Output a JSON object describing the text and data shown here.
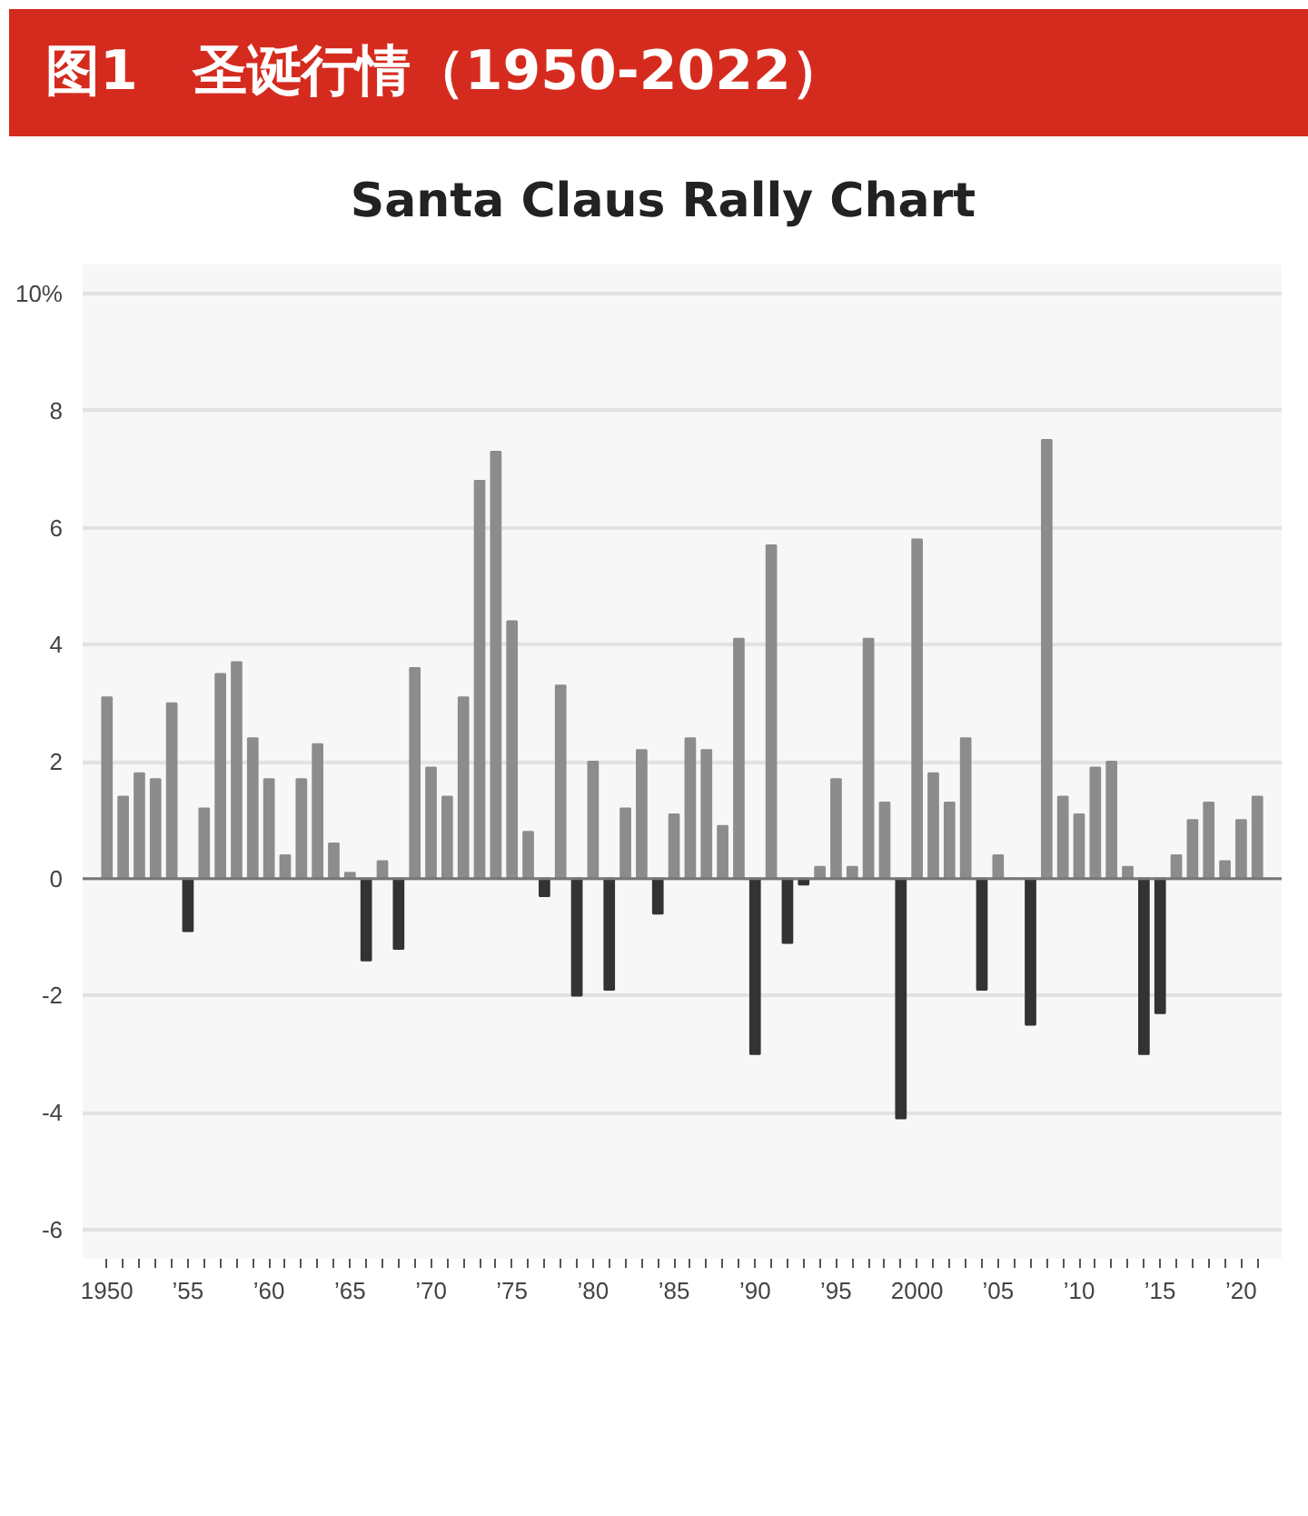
{
  "chart_data": {
    "type": "bar",
    "title": "图1　圣诞行情（1950-2022）",
    "subtitle": "Santa Claus Rally Chart",
    "x": [
      1950,
      1951,
      1952,
      1953,
      1954,
      1955,
      1956,
      1957,
      1958,
      1959,
      1960,
      1961,
      1962,
      1963,
      1964,
      1965,
      1966,
      1967,
      1968,
      1969,
      1970,
      1971,
      1972,
      1973,
      1974,
      1975,
      1976,
      1977,
      1978,
      1979,
      1980,
      1981,
      1982,
      1983,
      1984,
      1985,
      1986,
      1987,
      1988,
      1989,
      1990,
      1991,
      1992,
      1993,
      1994,
      1995,
      1996,
      1997,
      1998,
      1999,
      2000,
      2001,
      2002,
      2003,
      2004,
      2005,
      2006,
      2007,
      2008,
      2009,
      2010,
      2011,
      2012,
      2013,
      2014,
      2015,
      2016,
      2017,
      2018,
      2019,
      2020,
      2021
    ],
    "values": [
      3.1,
      1.4,
      1.8,
      1.7,
      3.0,
      -0.9,
      1.2,
      3.5,
      3.7,
      2.4,
      1.7,
      0.4,
      1.7,
      2.3,
      0.6,
      0.1,
      -1.4,
      0.3,
      -1.2,
      3.6,
      1.9,
      1.4,
      3.1,
      6.8,
      7.3,
      4.4,
      0.8,
      -0.3,
      3.3,
      -2.0,
      2.0,
      -1.9,
      1.2,
      2.2,
      -0.6,
      1.1,
      2.4,
      2.2,
      0.9,
      4.1,
      -3.0,
      5.7,
      -1.1,
      -0.1,
      0.2,
      1.7,
      0.2,
      4.1,
      1.3,
      -4.1,
      5.8,
      1.8,
      1.3,
      2.4,
      -1.9,
      0.4,
      0,
      -2.5,
      7.5,
      1.4,
      1.1,
      1.9,
      2.0,
      0.2,
      -3.0,
      -2.3,
      0.4,
      1.0,
      1.3,
      0.3,
      1.0,
      1.4
    ],
    "colors": [
      "#8c8c8c",
      "#8c8c8c",
      "#8c8c8c",
      "#8c8c8c",
      "#8c8c8c",
      "#333333",
      "#8c8c8c",
      "#8c8c8c",
      "#8c8c8c",
      "#8c8c8c",
      "#8c8c8c",
      "#8c8c8c",
      "#8c8c8c",
      "#8c8c8c",
      "#8c8c8c",
      "#8c8c8c",
      "#333333",
      "#8c8c8c",
      "#333333",
      "#8c8c8c",
      "#8c8c8c",
      "#8c8c8c",
      "#8c8c8c",
      "#8c8c8c",
      "#8c8c8c",
      "#8c8c8c",
      "#8c8c8c",
      "#333333",
      "#8c8c8c",
      "#333333",
      "#8c8c8c",
      "#333333",
      "#8c8c8c",
      "#8c8c8c",
      "#333333",
      "#8c8c8c",
      "#8c8c8c",
      "#8c8c8c",
      "#8c8c8c",
      "#8c8c8c",
      "#333333",
      "#8c8c8c",
      "#333333",
      "#333333",
      "#8c8c8c",
      "#8c8c8c",
      "#8c8c8c",
      "#8c8c8c",
      "#8c8c8c",
      "#333333",
      "#8c8c8c",
      "#8c8c8c",
      "#8c8c8c",
      "#8c8c8c",
      "#333333",
      "#8c8c8c",
      "#8c8c8c",
      "#333333",
      "#8c8c8c",
      "#8c8c8c",
      "#8c8c8c",
      "#8c8c8c",
      "#8c8c8c",
      "#8c8c8c",
      "#333333",
      "#333333",
      "#8c8c8c",
      "#8c8c8c",
      "#8c8c8c",
      "#8c8c8c",
      "#8c8c8c",
      "#8c8c8c"
    ],
    "xlim": [
      1948.5,
      2022.5
    ],
    "xticks": [
      {
        "value": 1950,
        "label": "1950"
      },
      {
        "value": 1951,
        "label": null
      },
      {
        "value": 1952,
        "label": null
      },
      {
        "value": 1953,
        "label": null
      },
      {
        "value": 1954,
        "label": null
      },
      {
        "value": 1955,
        "label": "’55"
      },
      {
        "value": 1956,
        "label": null
      },
      {
        "value": 1957,
        "label": null
      },
      {
        "value": 1958,
        "label": null
      },
      {
        "value": 1959,
        "label": null
      },
      {
        "value": 1960,
        "label": "’60"
      },
      {
        "value": 1961,
        "label": null
      },
      {
        "value": 1962,
        "label": null
      },
      {
        "value": 1963,
        "label": null
      },
      {
        "value": 1964,
        "label": null
      },
      {
        "value": 1965,
        "label": "’65"
      },
      {
        "value": 1966,
        "label": null
      },
      {
        "value": 1967,
        "label": null
      },
      {
        "value": 1968,
        "label": null
      },
      {
        "value": 1969,
        "label": null
      },
      {
        "value": 1970,
        "label": "’70"
      },
      {
        "value": 1971,
        "label": null
      },
      {
        "value": 1972,
        "label": null
      },
      {
        "value": 1973,
        "label": null
      },
      {
        "value": 1974,
        "label": null
      },
      {
        "value": 1975,
        "label": "’75"
      },
      {
        "value": 1976,
        "label": null
      },
      {
        "value": 1977,
        "label": null
      },
      {
        "value": 1978,
        "label": null
      },
      {
        "value": 1979,
        "label": null
      },
      {
        "value": 1980,
        "label": "’80"
      },
      {
        "value": 1981,
        "label": null
      },
      {
        "value": 1982,
        "label": null
      },
      {
        "value": 1983,
        "label": null
      },
      {
        "value": 1984,
        "label": null
      },
      {
        "value": 1985,
        "label": "’85"
      },
      {
        "value": 1986,
        "label": null
      },
      {
        "value": 1987,
        "label": null
      },
      {
        "value": 1988,
        "label": null
      },
      {
        "value": 1989,
        "label": null
      },
      {
        "value": 1990,
        "label": "’90"
      },
      {
        "value": 1991,
        "label": null
      },
      {
        "value": 1992,
        "label": null
      },
      {
        "value": 1993,
        "label": null
      },
      {
        "value": 1994,
        "label": null
      },
      {
        "value": 1995,
        "label": "’95"
      },
      {
        "value": 1996,
        "label": null
      },
      {
        "value": 1997,
        "label": null
      },
      {
        "value": 1998,
        "label": null
      },
      {
        "value": 1999,
        "label": null
      },
      {
        "value": 2000,
        "label": "2000"
      },
      {
        "value": 2001,
        "label": null
      },
      {
        "value": 2002,
        "label": null
      },
      {
        "value": 2003,
        "label": null
      },
      {
        "value": 2004,
        "label": null
      },
      {
        "value": 2005,
        "label": "’05"
      },
      {
        "value": 2006,
        "label": null
      },
      {
        "value": 2007,
        "label": null
      },
      {
        "value": 2008,
        "label": null
      },
      {
        "value": 2009,
        "label": null
      },
      {
        "value": 2010,
        "label": "’10"
      },
      {
        "value": 2011,
        "label": null
      },
      {
        "value": 2012,
        "label": null
      },
      {
        "value": 2013,
        "label": null
      },
      {
        "value": 2014,
        "label": null
      },
      {
        "value": 2015,
        "label": "’15"
      },
      {
        "value": 2016,
        "label": null
      },
      {
        "value": 2017,
        "label": null
      },
      {
        "value": 2018,
        "label": null
      },
      {
        "value": 2019,
        "label": null
      },
      {
        "value": 2020,
        "label": "’20"
      },
      {
        "value": 2021,
        "label": null
      }
    ],
    "ylim": [
      -6.5,
      10.5
    ],
    "yticks": [
      -6,
      -4,
      -2,
      0,
      2,
      4,
      6,
      8,
      {
        "value": 10,
        "label": "10%"
      }
    ],
    "grid": "y"
  }
}
